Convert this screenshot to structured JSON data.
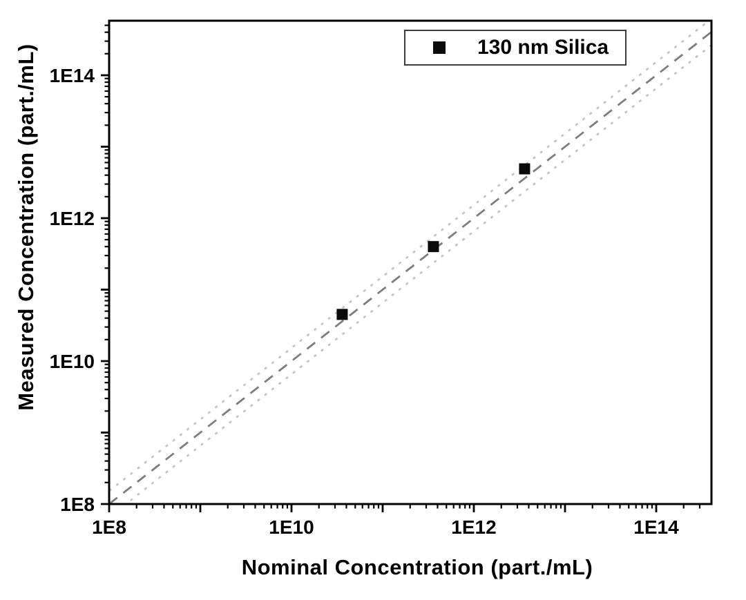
{
  "figure": {
    "background": "#ffffff",
    "frame_color": "#000000",
    "tick_label_color": "#000000"
  },
  "legend": {
    "label": "130 nm Silica",
    "marker": "filled-square",
    "marker_color": "#0a0a0a",
    "border_color": "#3c3c3c",
    "position": "top-right"
  },
  "chart_data": {
    "type": "scatter",
    "title": "",
    "xlabel": "Nominal Concentration (part./mL)",
    "ylabel": "Measured Concentration (part./mL)",
    "x_scale": "log",
    "y_scale": "log",
    "xlim": [
      100000000.0,
      400000000000000.0
    ],
    "ylim": [
      100000000.0,
      580000000000000.0
    ],
    "xlim_exp": [
      8,
      14.606
    ],
    "ylim_exp": [
      8,
      14.763
    ],
    "grid": false,
    "legend_position": "top-right",
    "x_axis": {
      "tick_labels": [
        "1E8",
        "1E10",
        "1E12",
        "1E14"
      ],
      "labeled_exponents": [
        8,
        10,
        12,
        14
      ],
      "decade_range": [
        8,
        14
      ],
      "ticks_direction": "out"
    },
    "y_axis": {
      "tick_labels": [
        "1E8",
        "1E10",
        "1E12",
        "1E14"
      ],
      "labeled_exponents": [
        8,
        10,
        12,
        14
      ],
      "decade_range": [
        8,
        14
      ],
      "ticks_direction": "out"
    },
    "series": [
      {
        "name": "130 nm Silica",
        "marker": "square",
        "color": "#0a0a0a",
        "points": [
          {
            "nominal": 36000000000.0,
            "measured": 45000000000.0
          },
          {
            "nominal": 360000000000.0,
            "measured": 400000000000.0
          },
          {
            "nominal": 3600000000000.0,
            "measured": 4900000000000.0
          }
        ]
      }
    ],
    "reference_lines": [
      {
        "name": "identity",
        "equation": "y = x",
        "offset_decades": 0,
        "style": "dashed",
        "color": "#7d7d7d"
      },
      {
        "name": "upper-tolerance",
        "equation": "y = 1.5x",
        "offset_decades": 0.184,
        "style": "dotted",
        "color": "#c4c4c4"
      },
      {
        "name": "lower-tolerance",
        "equation": "y = x/1.5",
        "offset_decades": -0.184,
        "style": "dotted",
        "color": "#c4c4c4"
      }
    ]
  }
}
